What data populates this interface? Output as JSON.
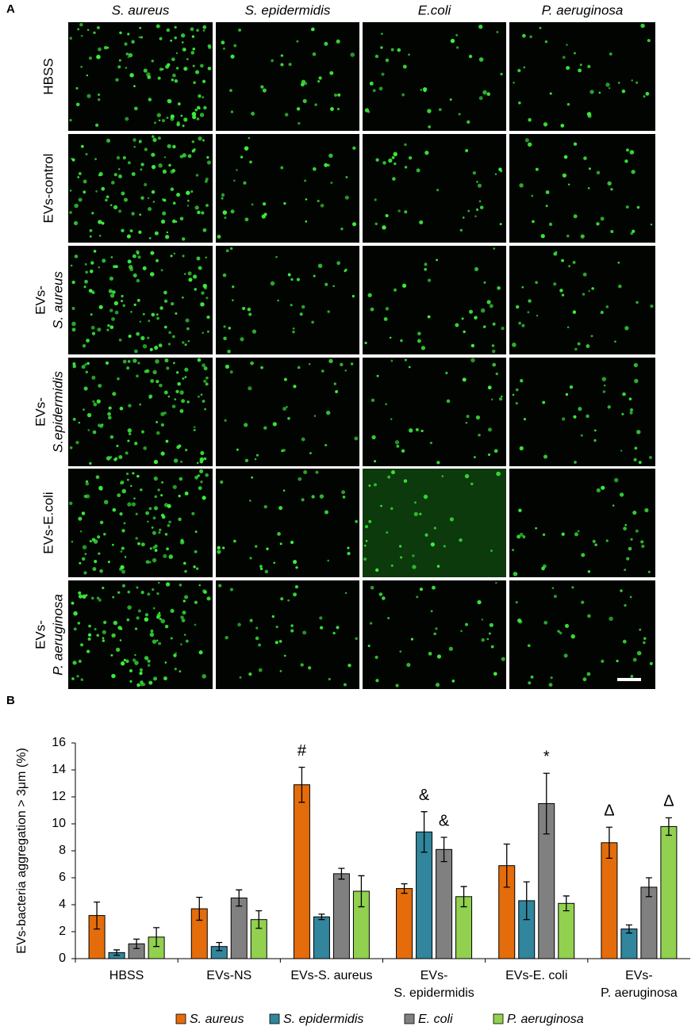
{
  "panel_a": {
    "label": "A",
    "columns": [
      "S. aureus",
      "S. epidermidis",
      "E.coli",
      "P. aeruginosa"
    ],
    "rows": [
      {
        "lines": [
          "HBSS"
        ]
      },
      {
        "lines": [
          "EVs-control"
        ]
      },
      {
        "lines": [
          "EVs-",
          "S. aureus"
        ]
      },
      {
        "lines": [
          "EVs-",
          "S.epidermidis"
        ]
      },
      {
        "lines": [
          "EVs-E.coli"
        ]
      },
      {
        "lines": [
          "EVs-",
          "P. aeruginosa"
        ]
      }
    ]
  },
  "chart_data": {
    "type": "bar",
    "panel_label": "B",
    "y_label": "EVs-bacteria aggregation > 3μm (%)",
    "categories": [
      "HBSS",
      "EVs-NS",
      "EVs-S. aureus",
      "EVs-\nS. epidermidis",
      "EVs-E. coli",
      "EVs-\nP. aeruginosa"
    ],
    "ylim": [
      0,
      16
    ],
    "yticks": [
      0,
      2,
      4,
      6,
      8,
      10,
      12,
      14,
      16
    ],
    "series": [
      {
        "name": "S. aureus",
        "color": "#e46c0a",
        "values": [
          3.2,
          3.7,
          12.9,
          5.2,
          6.9,
          8.6
        ],
        "errors": [
          1.0,
          0.85,
          1.3,
          0.35,
          1.6,
          1.15
        ],
        "annotations": [
          null,
          null,
          "#",
          null,
          null,
          "Δ"
        ]
      },
      {
        "name": "S. epidermidis",
        "color": "#31859c",
        "values": [
          0.45,
          0.9,
          3.1,
          9.4,
          4.3,
          2.2
        ],
        "errors": [
          0.2,
          0.3,
          0.2,
          1.5,
          1.4,
          0.3
        ],
        "annotations": [
          null,
          null,
          null,
          "&",
          null,
          null
        ]
      },
      {
        "name": "E. coli",
        "color": "#808080",
        "values": [
          1.1,
          4.5,
          6.3,
          8.1,
          11.5,
          5.3
        ],
        "errors": [
          0.35,
          0.6,
          0.4,
          0.9,
          2.25,
          0.7
        ],
        "annotations": [
          null,
          null,
          null,
          "&",
          "*",
          null
        ]
      },
      {
        "name": "P. aeruginosa",
        "color": "#92d050",
        "values": [
          1.6,
          2.9,
          5.0,
          4.6,
          4.1,
          9.8
        ],
        "errors": [
          0.7,
          0.65,
          1.15,
          0.75,
          0.55,
          0.65
        ],
        "annotations": [
          null,
          null,
          null,
          null,
          null,
          "Δ"
        ]
      }
    ]
  }
}
